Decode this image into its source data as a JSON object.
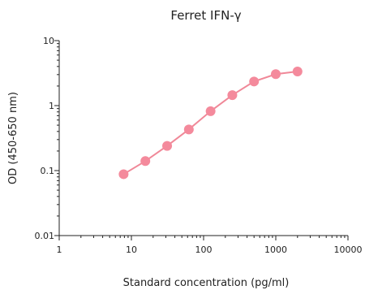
{
  "chart_data": {
    "type": "line",
    "title": "Ferret IFN-γ",
    "xlabel": "Standard concentration (pg/ml)",
    "ylabel": "OD (450-650 nm)",
    "x_scale": "log",
    "y_scale": "log",
    "xlim": [
      1,
      10000
    ],
    "ylim": [
      0.01,
      10
    ],
    "x_ticks": [
      1,
      10,
      100,
      1000,
      10000
    ],
    "x_tick_labels": [
      "1",
      "10",
      "100",
      "1000",
      "10000"
    ],
    "y_ticks": [
      0.01,
      0.1,
      1,
      10
    ],
    "y_tick_labels": [
      "0.01",
      "0.1",
      "1",
      "10"
    ],
    "grid": false,
    "series": [
      {
        "color": "#f08898",
        "marker_color": "#f48a9c",
        "points": [
          {
            "x": 7.8,
            "y": 0.088
          },
          {
            "x": 15.6,
            "y": 0.14
          },
          {
            "x": 31.25,
            "y": 0.24
          },
          {
            "x": 62.5,
            "y": 0.43
          },
          {
            "x": 125,
            "y": 0.82
          },
          {
            "x": 250,
            "y": 1.45
          },
          {
            "x": 500,
            "y": 2.35
          },
          {
            "x": 1000,
            "y": 3.05
          },
          {
            "x": 2000,
            "y": 3.35
          }
        ]
      }
    ]
  }
}
